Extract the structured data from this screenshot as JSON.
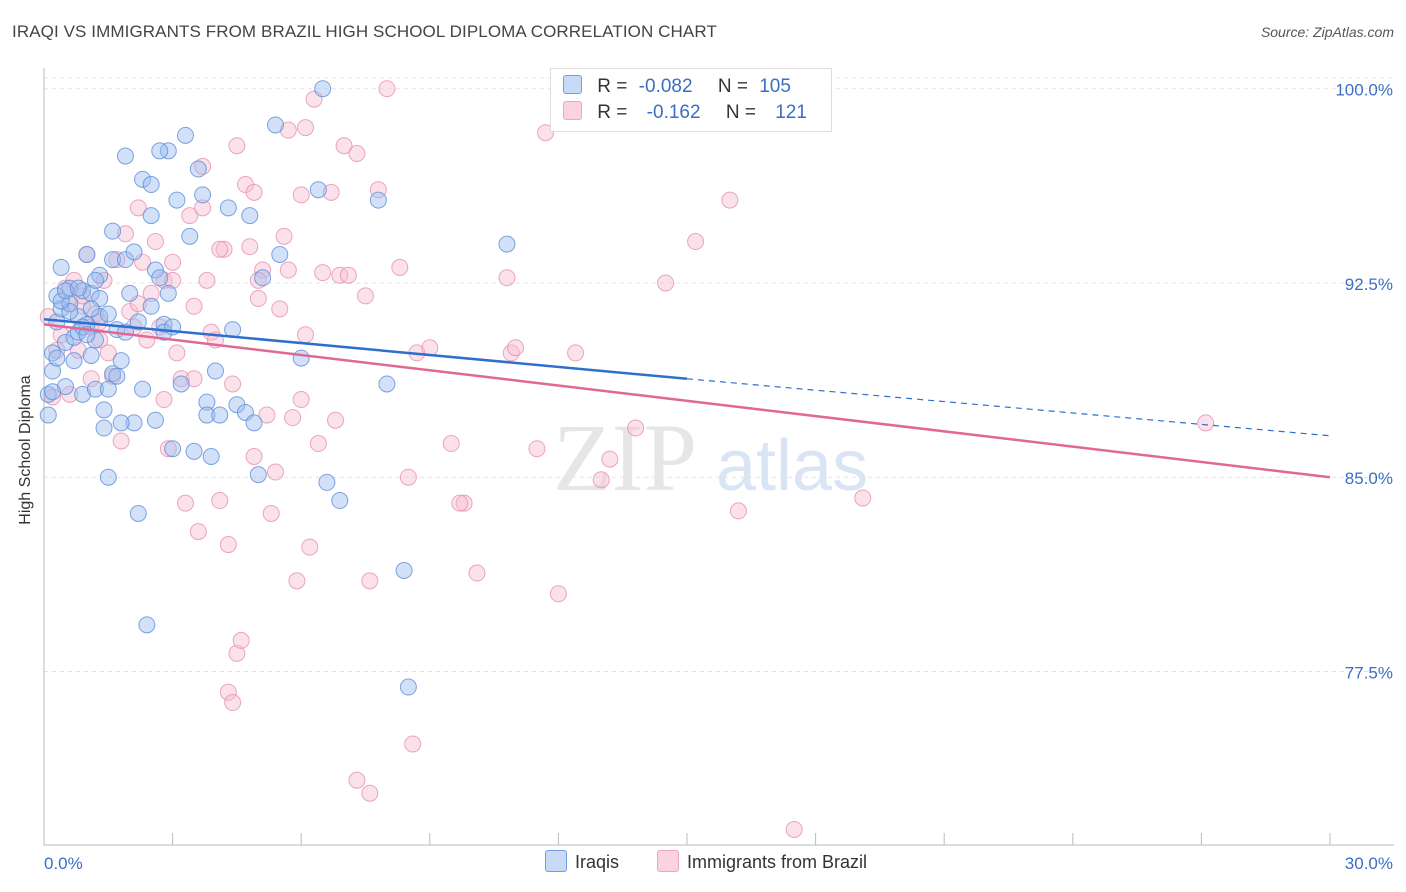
{
  "title": "IRAQI VS IMMIGRANTS FROM BRAZIL HIGH SCHOOL DIPLOMA CORRELATION CHART",
  "source": "Source: ZipAtlas.com",
  "watermark": {
    "zip": "ZIP",
    "atlas": "atlas"
  },
  "legend_top": {
    "rows": [
      {
        "r_label": "R =",
        "r_value": "-0.082",
        "n_label": "N =",
        "n_value": "105",
        "color": "#6f9fe6"
      },
      {
        "r_label": "R =",
        "r_value": "-0.162",
        "n_label": "N =",
        "n_value": "121",
        "color": "#f0a6bd"
      }
    ]
  },
  "legend_bottom": {
    "items": [
      "Iraqis",
      "Immigrants from Brazil"
    ]
  },
  "colors": {
    "iraqis_fill": "#9bbdf0",
    "iraqis_stroke": "#5d8fd8",
    "iraqis_line": "#2e6fce",
    "brazil_fill": "#f7bfd0",
    "brazil_stroke": "#e98fb0",
    "brazil_line": "#e06893",
    "tick_label": "#3a6fc4",
    "grid": "#e3e3e3"
  },
  "chart_data": {
    "type": "scatter",
    "title": "IRAQI VS IMMIGRANTS FROM BRAZIL HIGH SCHOOL DIPLOMA CORRELATION CHART",
    "xlabel": "",
    "ylabel": "High School Diploma",
    "xlim": [
      0,
      30
    ],
    "ylim": [
      70.8,
      100.8
    ],
    "x_tick_labels": [
      "0.0%",
      "30.0%"
    ],
    "y_ticks": [
      77.5,
      85.0,
      92.5,
      100.0
    ],
    "y_tick_labels": [
      "77.5%",
      "85.0%",
      "92.5%",
      "100.0%"
    ],
    "grid": "horizontal dashed",
    "legend_position": "top-center",
    "series": [
      {
        "name": "Iraqis",
        "R": -0.082,
        "N": 105,
        "trend": {
          "x": [
            0,
            15
          ],
          "y": [
            91.1,
            88.8
          ],
          "extends_dashed_to": [
            30,
            86.6
          ]
        },
        "points": [
          [
            0.1,
            87.4
          ],
          [
            0.1,
            88.2
          ],
          [
            0.2,
            89.1
          ],
          [
            0.2,
            89.8
          ],
          [
            0.3,
            91.0
          ],
          [
            0.3,
            92.0
          ],
          [
            0.4,
            93.1
          ],
          [
            0.4,
            91.5
          ],
          [
            0.5,
            90.2
          ],
          [
            0.5,
            88.5
          ],
          [
            0.6,
            91.7
          ],
          [
            0.6,
            92.3
          ],
          [
            0.7,
            90.4
          ],
          [
            0.7,
            89.5
          ],
          [
            0.8,
            91.2
          ],
          [
            0.8,
            90.6
          ],
          [
            0.9,
            92.2
          ],
          [
            0.9,
            88.2
          ],
          [
            1.0,
            93.6
          ],
          [
            1.0,
            90.9
          ],
          [
            1.1,
            92.1
          ],
          [
            1.1,
            89.7
          ],
          [
            1.2,
            90.3
          ],
          [
            1.2,
            88.4
          ],
          [
            1.3,
            92.8
          ],
          [
            1.3,
            91.2
          ],
          [
            1.4,
            87.6
          ],
          [
            1.4,
            86.9
          ],
          [
            1.5,
            88.4
          ],
          [
            1.5,
            85.0
          ],
          [
            1.6,
            93.4
          ],
          [
            1.6,
            89.0
          ],
          [
            1.7,
            90.7
          ],
          [
            1.7,
            88.9
          ],
          [
            1.8,
            89.5
          ],
          [
            1.9,
            93.4
          ],
          [
            2.0,
            92.1
          ],
          [
            2.1,
            87.1
          ],
          [
            2.2,
            83.6
          ],
          [
            2.3,
            96.5
          ],
          [
            2.3,
            88.4
          ],
          [
            2.4,
            79.3
          ],
          [
            2.5,
            96.3
          ],
          [
            2.5,
            95.1
          ],
          [
            2.6,
            93.0
          ],
          [
            2.6,
            87.2
          ],
          [
            2.7,
            92.7
          ],
          [
            2.8,
            90.9
          ],
          [
            2.8,
            90.6
          ],
          [
            2.9,
            92.1
          ],
          [
            3.0,
            86.1
          ],
          [
            3.1,
            95.7
          ],
          [
            3.2,
            88.6
          ],
          [
            3.3,
            98.2
          ],
          [
            3.4,
            94.3
          ],
          [
            3.5,
            86.0
          ],
          [
            3.6,
            96.9
          ],
          [
            3.7,
            95.9
          ],
          [
            3.8,
            87.9
          ],
          [
            3.8,
            87.4
          ],
          [
            3.9,
            85.8
          ],
          [
            4.0,
            89.1
          ],
          [
            4.1,
            87.4
          ],
          [
            4.3,
            95.4
          ],
          [
            4.4,
            90.7
          ],
          [
            4.5,
            87.8
          ],
          [
            4.7,
            87.5
          ],
          [
            4.8,
            95.1
          ],
          [
            4.9,
            87.1
          ],
          [
            5.0,
            85.1
          ],
          [
            5.1,
            92.7
          ],
          [
            5.4,
            98.6
          ],
          [
            5.5,
            93.6
          ],
          [
            6.0,
            89.6
          ],
          [
            6.4,
            96.1
          ],
          [
            6.5,
            100.0
          ],
          [
            6.6,
            84.8
          ],
          [
            6.9,
            84.1
          ],
          [
            7.8,
            95.7
          ],
          [
            8.0,
            88.6
          ],
          [
            8.4,
            81.4
          ],
          [
            8.5,
            76.9
          ],
          [
            10.8,
            94.0
          ],
          [
            2.9,
            97.6
          ],
          [
            2.7,
            97.6
          ],
          [
            1.9,
            97.4
          ],
          [
            1.3,
            91.9
          ],
          [
            0.6,
            91.4
          ],
          [
            0.9,
            90.8
          ],
          [
            1.0,
            90.5
          ],
          [
            1.8,
            87.1
          ],
          [
            2.2,
            91.0
          ],
          [
            0.4,
            91.8
          ],
          [
            0.5,
            92.2
          ],
          [
            0.8,
            92.3
          ],
          [
            1.1,
            91.5
          ],
          [
            1.5,
            91.3
          ],
          [
            1.9,
            90.6
          ],
          [
            2.5,
            91.6
          ],
          [
            0.2,
            88.3
          ],
          [
            0.3,
            89.6
          ],
          [
            1.2,
            92.6
          ],
          [
            1.6,
            94.5
          ],
          [
            2.1,
            93.7
          ],
          [
            3.0,
            90.8
          ]
        ]
      },
      {
        "name": "Immigrants from Brazil",
        "R": -0.162,
        "N": 121,
        "trend": {
          "x": [
            0,
            30
          ],
          "y": [
            90.9,
            85.0
          ]
        },
        "points": [
          [
            0.1,
            91.2
          ],
          [
            0.2,
            88.1
          ],
          [
            0.3,
            89.9
          ],
          [
            0.4,
            90.5
          ],
          [
            0.5,
            92.3
          ],
          [
            0.6,
            91.7
          ],
          [
            0.7,
            92.6
          ],
          [
            0.8,
            89.9
          ],
          [
            0.9,
            91.6
          ],
          [
            1.0,
            93.6
          ],
          [
            1.1,
            90.8
          ],
          [
            1.2,
            91.3
          ],
          [
            1.3,
            90.3
          ],
          [
            1.4,
            92.6
          ],
          [
            1.5,
            89.8
          ],
          [
            1.6,
            88.9
          ],
          [
            1.7,
            93.4
          ],
          [
            1.8,
            86.4
          ],
          [
            1.9,
            94.4
          ],
          [
            2.0,
            91.4
          ],
          [
            2.1,
            90.8
          ],
          [
            2.2,
            91.7
          ],
          [
            2.3,
            93.3
          ],
          [
            2.4,
            90.3
          ],
          [
            2.5,
            92.1
          ],
          [
            2.6,
            94.1
          ],
          [
            2.7,
            90.8
          ],
          [
            2.8,
            92.6
          ],
          [
            2.9,
            86.1
          ],
          [
            3.0,
            93.3
          ],
          [
            3.1,
            89.8
          ],
          [
            3.2,
            88.8
          ],
          [
            3.3,
            84.0
          ],
          [
            3.4,
            95.1
          ],
          [
            3.5,
            91.6
          ],
          [
            3.6,
            82.9
          ],
          [
            3.7,
            95.4
          ],
          [
            3.8,
            92.6
          ],
          [
            3.9,
            90.6
          ],
          [
            4.0,
            90.3
          ],
          [
            4.1,
            84.1
          ],
          [
            4.2,
            93.8
          ],
          [
            4.3,
            82.4
          ],
          [
            4.4,
            88.6
          ],
          [
            4.5,
            78.2
          ],
          [
            4.6,
            78.7
          ],
          [
            4.7,
            96.3
          ],
          [
            4.8,
            93.9
          ],
          [
            4.9,
            96.0
          ],
          [
            5.0,
            91.9
          ],
          [
            5.1,
            93.0
          ],
          [
            5.2,
            87.4
          ],
          [
            5.3,
            83.6
          ],
          [
            5.4,
            85.2
          ],
          [
            5.5,
            91.5
          ],
          [
            5.6,
            94.3
          ],
          [
            5.7,
            93.0
          ],
          [
            5.8,
            87.3
          ],
          [
            5.9,
            81.0
          ],
          [
            6.0,
            88.0
          ],
          [
            6.1,
            90.5
          ],
          [
            6.2,
            82.3
          ],
          [
            6.4,
            86.3
          ],
          [
            6.5,
            92.9
          ],
          [
            6.7,
            96.0
          ],
          [
            6.9,
            92.8
          ],
          [
            7.0,
            97.8
          ],
          [
            7.1,
            92.8
          ],
          [
            7.3,
            97.5
          ],
          [
            7.5,
            92.0
          ],
          [
            7.6,
            81.0
          ],
          [
            7.8,
            96.1
          ],
          [
            8.0,
            100.0
          ],
          [
            8.3,
            93.1
          ],
          [
            8.5,
            85.0
          ],
          [
            8.7,
            89.8
          ],
          [
            9.0,
            90.0
          ],
          [
            9.5,
            86.3
          ],
          [
            9.8,
            84.0
          ],
          [
            10.1,
            81.3
          ],
          [
            10.9,
            89.8
          ],
          [
            10.8,
            92.7
          ],
          [
            11.0,
            90.0
          ],
          [
            11.5,
            86.1
          ],
          [
            11.7,
            98.3
          ],
          [
            12.0,
            80.5
          ],
          [
            12.4,
            89.8
          ],
          [
            13.0,
            84.9
          ],
          [
            13.2,
            85.7
          ],
          [
            13.8,
            86.9
          ],
          [
            14.5,
            92.5
          ],
          [
            15.2,
            94.1
          ],
          [
            16.0,
            95.7
          ],
          [
            16.2,
            83.7
          ],
          [
            17.5,
            71.4
          ],
          [
            19.1,
            84.2
          ],
          [
            27.1,
            87.1
          ],
          [
            7.3,
            73.3
          ],
          [
            7.6,
            72.8
          ],
          [
            8.6,
            74.7
          ],
          [
            4.3,
            76.7
          ],
          [
            4.4,
            76.3
          ],
          [
            6.3,
            99.6
          ],
          [
            6.1,
            98.5
          ],
          [
            5.7,
            98.4
          ],
          [
            6.0,
            95.9
          ],
          [
            4.5,
            97.8
          ],
          [
            3.7,
            97.0
          ],
          [
            3.0,
            92.6
          ],
          [
            4.1,
            93.8
          ],
          [
            5.0,
            92.6
          ],
          [
            2.2,
            95.4
          ],
          [
            1.1,
            88.8
          ],
          [
            0.6,
            88.2
          ],
          [
            3.5,
            88.8
          ],
          [
            2.8,
            88.0
          ],
          [
            4.9,
            85.8
          ],
          [
            6.8,
            87.2
          ],
          [
            9.7,
            84.0
          ],
          [
            1.3,
            91.0
          ],
          [
            0.9,
            92.0
          ]
        ]
      }
    ]
  }
}
